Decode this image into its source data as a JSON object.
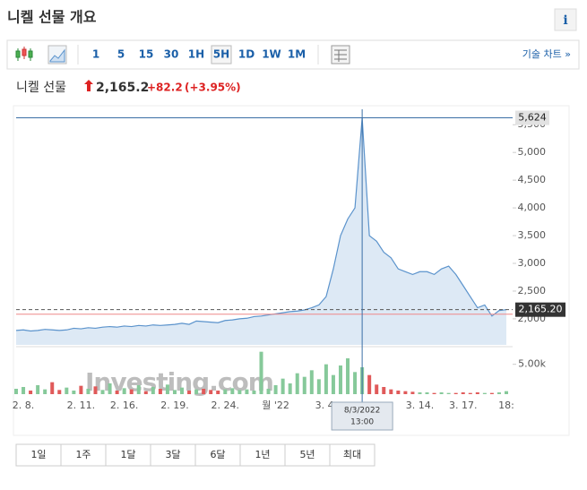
{
  "header": {
    "title": "니켈 선물 개요",
    "info": "i"
  },
  "toolbar": {
    "intervals": [
      "1",
      "5",
      "15",
      "30",
      "1H",
      "5H",
      "1D",
      "1W",
      "1M"
    ],
    "active": "5H",
    "technical": "기술 차트 »"
  },
  "quote": {
    "name": "니켈 선물",
    "price": "2,165.2",
    "change": "+82.2",
    "change_pct": "(+3.95%)"
  },
  "ranges": [
    "1일",
    "1주",
    "1달",
    "3달",
    "6달",
    "1년",
    "5년",
    "최대"
  ],
  "watermark": "Investing.com",
  "chart_data": {
    "type": "area",
    "categories": [
      null,
      "2. 8.",
      null,
      null,
      null,
      null,
      null,
      null,
      null,
      "2. 11.",
      null,
      null,
      null,
      null,
      null,
      "2. 16.",
      null,
      null,
      null,
      null,
      null,
      null,
      "2. 19.",
      null,
      null,
      null,
      null,
      null,
      null,
      "2. 24.",
      null,
      null,
      null,
      null,
      null,
      null,
      "월 '22",
      null,
      null,
      null,
      null,
      null,
      null,
      "3. 4.",
      null,
      null,
      null,
      null,
      null,
      null,
      null,
      null,
      null,
      null,
      null,
      null,
      "3. 14.",
      null,
      null,
      null,
      null,
      null,
      "3. 17.",
      null,
      null,
      null,
      null,
      null,
      "18:"
    ],
    "series": [
      {
        "name": "가격",
        "color": "#5b93cc",
        "values": [
          1790,
          1800,
          1780,
          1790,
          1810,
          1800,
          1790,
          1800,
          1830,
          1820,
          1840,
          1830,
          1850,
          1860,
          1850,
          1870,
          1860,
          1880,
          1870,
          1890,
          1880,
          1890,
          1900,
          1920,
          1900,
          1960,
          1950,
          1940,
          1930,
          1970,
          1980,
          2000,
          2010,
          2040,
          2050,
          2070,
          2090,
          2110,
          2130,
          2140,
          2160,
          2200,
          2250,
          2400,
          2900,
          3500,
          3800,
          4000,
          5624,
          3500,
          3400,
          3200,
          3100,
          2900,
          2850,
          2800,
          2850,
          2850,
          2800,
          2900,
          2950,
          2800,
          2600,
          2400,
          2200,
          2250,
          2050,
          2150,
          2165.2
        ]
      },
      {
        "name": "거래량",
        "axis": "y2",
        "color": "#86c99a",
        "values": [
          900,
          1200,
          600,
          1500,
          800,
          2000,
          700,
          1100,
          600,
          1400,
          900,
          1300,
          700,
          1800,
          600,
          1000,
          800,
          1500,
          500,
          1200,
          900,
          1600,
          700,
          1100,
          600,
          800,
          900,
          700,
          600,
          800,
          1000,
          700,
          800,
          600,
          7100,
          900,
          1500,
          2600,
          1800,
          3500,
          2900,
          4000,
          2500,
          5000,
          3200,
          4800,
          6000,
          3700,
          4500,
          3200,
          1600,
          1200,
          800,
          600,
          500,
          400,
          300,
          300,
          200,
          300,
          200,
          200,
          300,
          200,
          300,
          200,
          200,
          300,
          500
        ]
      }
    ],
    "down_color": "#e05a5a",
    "ylim": [
      1530,
      5730
    ],
    "yticks": [
      {
        "value": 2000,
        "label": "2,000"
      },
      {
        "value": 2500,
        "label": "2,500"
      },
      {
        "value": 3000,
        "label": "3,000"
      },
      {
        "value": 3500,
        "label": "3,500"
      },
      {
        "value": 4000,
        "label": "4,000"
      },
      {
        "value": 4500,
        "label": "4,500"
      },
      {
        "value": 5000,
        "label": "5,000"
      },
      {
        "value": 5500,
        "label": "5,500"
      }
    ],
    "y2lim": [
      0,
      9000
    ],
    "y2ticks": [
      {
        "value": 5000,
        "label": "5.00k"
      }
    ],
    "prev_close": 2083,
    "crosshair": {
      "index": 48,
      "value": 5624,
      "label": "5,624",
      "date": "8/3/2022",
      "time": "13:00"
    },
    "last": {
      "value": 2165.2,
      "label": "2,165.20"
    }
  }
}
